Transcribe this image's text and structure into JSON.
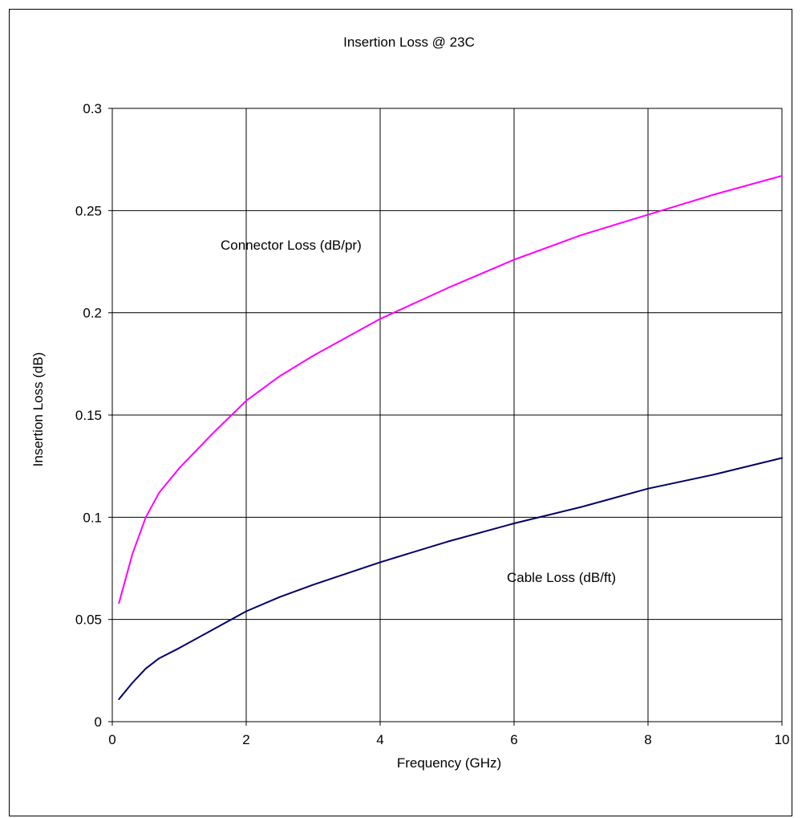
{
  "chart_data": {
    "type": "line",
    "title": "Insertion Loss @ 23C",
    "xlabel": "Frequency (GHz)",
    "ylabel": "Insertion Loss (dB)",
    "xlim": [
      0,
      10
    ],
    "ylim": [
      0,
      0.3
    ],
    "x_ticks": [
      0,
      2,
      4,
      6,
      8,
      10
    ],
    "y_ticks": [
      0,
      0.05,
      0.1,
      0.15,
      0.2,
      0.25,
      0.3
    ],
    "x_tick_labels": [
      "0",
      "2",
      "4",
      "6",
      "8",
      "10"
    ],
    "y_tick_labels": [
      "0",
      "0.05",
      "0.1",
      "0.15",
      "0.2",
      "0.25",
      "0.3"
    ],
    "grid": true,
    "legend": "none",
    "series": [
      {
        "name": "Connector Loss (dB/pr)",
        "color": "#ff00ff",
        "x": [
          0.1,
          0.3,
          0.5,
          0.7,
          1,
          1.5,
          2,
          2.5,
          3,
          4,
          5,
          6,
          7,
          8,
          9,
          10
        ],
        "y": [
          0.058,
          0.082,
          0.1,
          0.112,
          0.124,
          0.141,
          0.157,
          0.169,
          0.179,
          0.197,
          0.212,
          0.226,
          0.238,
          0.248,
          0.258,
          0.267
        ]
      },
      {
        "name": "Cable Loss (dB/ft)",
        "color": "#000066",
        "x": [
          0.1,
          0.3,
          0.5,
          0.7,
          1,
          1.5,
          2,
          2.5,
          3,
          4,
          5,
          6,
          7,
          8,
          9,
          10
        ],
        "y": [
          0.011,
          0.019,
          0.026,
          0.031,
          0.036,
          0.045,
          0.054,
          0.061,
          0.067,
          0.078,
          0.088,
          0.097,
          0.105,
          0.114,
          0.121,
          0.129
        ]
      }
    ],
    "annotations": [
      "Connector Loss (dB/pr)",
      "Cable Loss (dB/ft)"
    ]
  }
}
